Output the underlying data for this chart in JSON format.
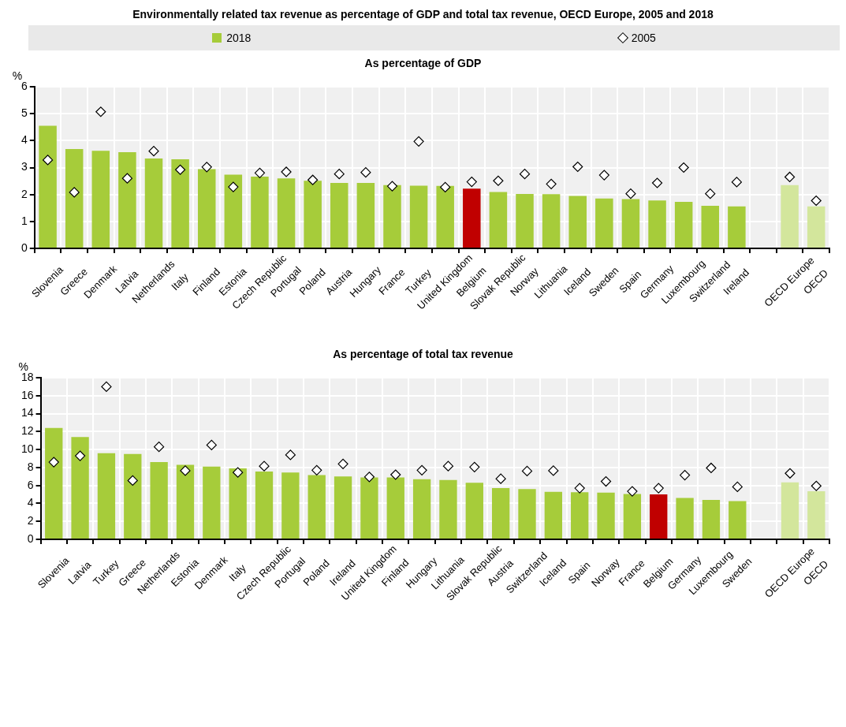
{
  "chart_data": [
    {
      "type": "bar",
      "title": "Environmentally related tax revenue as percentage of GDP and total tax revenue, OECD Europe, 2005 and 2018",
      "subtitle": "As percentage of GDP",
      "ylabel": "%",
      "categories": [
        "Slovenia",
        "Greece",
        "Denmark",
        "Latvia",
        "Netherlands",
        "Italy",
        "Finland",
        "Estonia",
        "Czech Republic",
        "Portugal",
        "Poland",
        "Austria",
        "Hungary",
        "France",
        "Turkey",
        "United Kingdom",
        "Belgium",
        "Slovak Republic",
        "Norway",
        "Lithuania",
        "Iceland",
        "Sweden",
        "Spain",
        "Germany",
        "Luxembourg",
        "Switzerland",
        "Ireland",
        null,
        "OECD Europe",
        "OECD"
      ],
      "series": [
        {
          "name": "2018",
          "color": "#a6cc3a",
          "colors": [
            "#a6cc3a",
            "#a6cc3a",
            "#a6cc3a",
            "#a6cc3a",
            "#a6cc3a",
            "#a6cc3a",
            "#a6cc3a",
            "#a6cc3a",
            "#a6cc3a",
            "#a6cc3a",
            "#a6cc3a",
            "#a6cc3a",
            "#a6cc3a",
            "#a6cc3a",
            "#a6cc3a",
            "#a6cc3a",
            "#c00000",
            "#a6cc3a",
            "#a6cc3a",
            "#a6cc3a",
            "#a6cc3a",
            "#a6cc3a",
            "#a6cc3a",
            "#a6cc3a",
            "#a6cc3a",
            "#a6cc3a",
            "#a6cc3a",
            "#a6cc3a",
            "#d3e69c",
            "#d3e69c"
          ],
          "values": [
            4.55,
            3.69,
            3.62,
            3.57,
            3.34,
            3.31,
            2.94,
            2.74,
            2.66,
            2.6,
            2.51,
            2.43,
            2.43,
            2.35,
            2.33,
            2.32,
            2.22,
            2.09,
            2.02,
            2.01,
            1.95,
            1.85,
            1.83,
            1.78,
            1.73,
            1.58,
            1.56,
            null,
            2.35,
            1.56
          ]
        },
        {
          "name": "2005",
          "type": "scatter",
          "color": "#ffffff",
          "x": [
            "Slovenia",
            "Greece",
            "Denmark",
            "Latvia",
            "Netherlands",
            "Italy",
            "Finland",
            "Estonia",
            "Czech Republic",
            "Portugal",
            "Poland",
            "Austria",
            "Hungary",
            "France",
            "Turkey",
            "United Kingdom",
            "Belgium",
            "Slovak Republic",
            "Norway",
            "Lithuania",
            "Iceland",
            "Sweden",
            "Spain",
            "Germany",
            "Luxembourg",
            "Switzerland",
            "Ireland",
            null,
            "OECD Europe",
            "OECD"
          ],
          "values": [
            3.28,
            2.08,
            5.07,
            2.6,
            3.61,
            2.92,
            3.02,
            2.28,
            2.8,
            2.84,
            2.54,
            2.76,
            2.82,
            2.31,
            3.97,
            2.27,
            2.47,
            2.51,
            2.76,
            2.39,
            3.03,
            2.72,
            2.03,
            2.43,
            3.0,
            2.03,
            2.46,
            null,
            2.65,
            1.77
          ]
        }
      ],
      "ylim": [
        0,
        6
      ],
      "yticks": [
        0,
        1,
        2,
        3,
        4,
        5,
        6
      ],
      "grid": true,
      "legend": "top",
      "marker": "diamond"
    },
    {
      "type": "bar",
      "title": "As percentage of total tax revenue",
      "ylabel": "%",
      "categories": [
        "Slovenia",
        "Latvia",
        "Turkey",
        "Greece",
        "Netherlands",
        "Estonia",
        "Denmark",
        "Italy",
        "Czech Republic",
        "Portugal",
        "Poland",
        "Ireland",
        "United Kingdom",
        "Finland",
        "Hungary",
        "Lithuania",
        "Slovak Republic",
        "Austria",
        "Switzerland",
        "Iceland",
        "Spain",
        "Norway",
        "France",
        "Belgium",
        "Germany",
        "Luxembourg",
        "Sweden",
        null,
        "OECD Europe",
        "OECD"
      ],
      "series": [
        {
          "color": "#a6cc3a",
          "colors": [
            "#a6cc3a",
            "#a6cc3a",
            "#a6cc3a",
            "#a6cc3a",
            "#a6cc3a",
            "#a6cc3a",
            "#a6cc3a",
            "#a6cc3a",
            "#a6cc3a",
            "#a6cc3a",
            "#a6cc3a",
            "#a6cc3a",
            "#a6cc3a",
            "#a6cc3a",
            "#a6cc3a",
            "#a6cc3a",
            "#a6cc3a",
            "#a6cc3a",
            "#a6cc3a",
            "#a6cc3a",
            "#a6cc3a",
            "#a6cc3a",
            "#a6cc3a",
            "#c00000",
            "#a6cc3a",
            "#a6cc3a",
            "#a6cc3a",
            "#a6cc3a",
            "#d3e69c",
            "#d3e69c"
          ],
          "values": [
            12.4,
            11.4,
            9.6,
            9.5,
            8.6,
            8.3,
            8.1,
            7.9,
            7.55,
            7.45,
            7.15,
            7.0,
            6.9,
            6.9,
            6.7,
            6.6,
            6.3,
            5.7,
            5.6,
            5.3,
            5.25,
            5.2,
            5.05,
            5.0,
            4.6,
            4.4,
            4.25,
            null,
            6.35,
            5.35
          ]
        },
        {
          "type": "scatter",
          "color": "#ffffff",
          "x": [
            "Slovenia",
            "Latvia",
            "Turkey",
            "Greece",
            "Netherlands",
            "Estonia",
            "Denmark",
            "Italy",
            "Czech Republic",
            "Portugal",
            "Poland",
            "Ireland",
            "United Kingdom",
            "Finland",
            "Hungary",
            "Lithuania",
            "Slovak Republic",
            "Austria",
            "Switzerland",
            "Iceland",
            "Spain",
            "Norway",
            "France",
            "Belgium",
            "Germany",
            "Luxembourg",
            "Sweden",
            null,
            "OECD Europe",
            "OECD"
          ],
          "values": [
            8.6,
            9.3,
            17.0,
            6.55,
            10.3,
            7.65,
            10.5,
            7.45,
            8.15,
            9.4,
            7.7,
            8.4,
            6.95,
            7.2,
            7.7,
            8.15,
            8.05,
            6.75,
            7.6,
            7.65,
            5.7,
            6.45,
            5.35,
            5.7,
            7.15,
            7.95,
            5.85,
            null,
            7.35,
            5.95
          ]
        }
      ],
      "ylim": [
        0,
        18
      ],
      "yticks": [
        0,
        2,
        4,
        6,
        8,
        10,
        12,
        14,
        16,
        18
      ],
      "grid": true,
      "marker": "diamond"
    }
  ]
}
